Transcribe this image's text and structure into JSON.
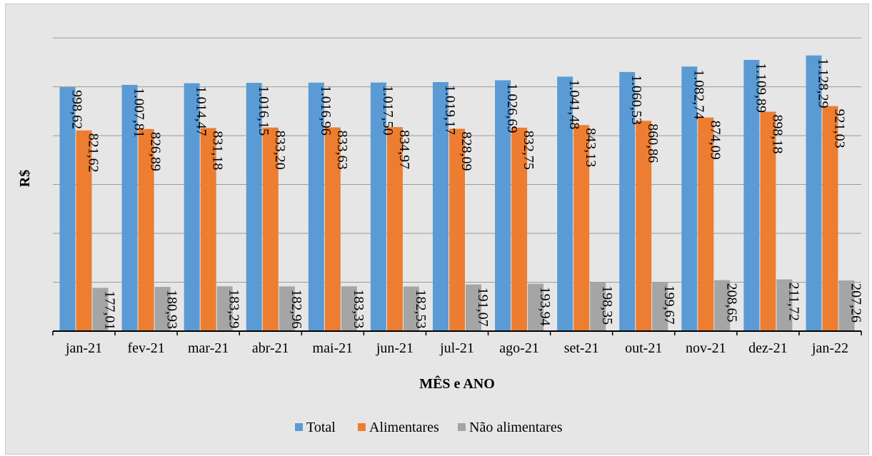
{
  "chart_data": {
    "type": "bar",
    "title": "",
    "xlabel": "MÊS e ANO",
    "ylabel": "R$",
    "ylim": [
      0,
      1250
    ],
    "y_tick_step": 200,
    "grid": true,
    "legend_position": "bottom",
    "categories": [
      "jan-21",
      "fev-21",
      "mar-21",
      "abr-21",
      "mai-21",
      "jun-21",
      "jul-21",
      "ago-21",
      "set-21",
      "out-21",
      "nov-21",
      "dez-21",
      "jan-22"
    ],
    "series": [
      {
        "name": "Total",
        "color": "#5b9bd5",
        "values": [
          998.62,
          1007.81,
          1014.47,
          1016.15,
          1016.96,
          1017.5,
          1019.17,
          1026.69,
          1041.48,
          1060.53,
          1082.74,
          1109.89,
          1128.29
        ],
        "labels": [
          "998,62",
          "1.007,81",
          "1.014,47",
          "1.016,15",
          "1.016,96",
          "1.017,50",
          "1.019,17",
          "1.026,69",
          "1.041,48",
          "1.060,53",
          "1.082,74",
          "1.109,89",
          "1.128,29"
        ]
      },
      {
        "name": "Alimentares",
        "color": "#ed7d31",
        "values": [
          821.62,
          826.89,
          831.18,
          833.2,
          833.63,
          834.97,
          828.09,
          832.75,
          843.13,
          860.86,
          874.09,
          898.18,
          921.03
        ],
        "labels": [
          "821,62",
          "826,89",
          "831,18",
          "833,20",
          "833,63",
          "834,97",
          "828,09",
          "832,75",
          "843,13",
          "860,86",
          "874,09",
          "898,18",
          "921,03"
        ]
      },
      {
        "name": "Não alimentares",
        "color": "#a5a5a5",
        "values": [
          177.01,
          180.93,
          183.29,
          182.96,
          183.33,
          182.53,
          191.07,
          193.94,
          198.35,
          199.67,
          208.65,
          211.72,
          207.26
        ],
        "labels": [
          "177,01",
          "180,93",
          "183,29",
          "182,96",
          "183,33",
          "182,53",
          "191,07",
          "193,94",
          "198,35",
          "199,67",
          "208,65",
          "211,72",
          "207,26"
        ]
      }
    ]
  }
}
